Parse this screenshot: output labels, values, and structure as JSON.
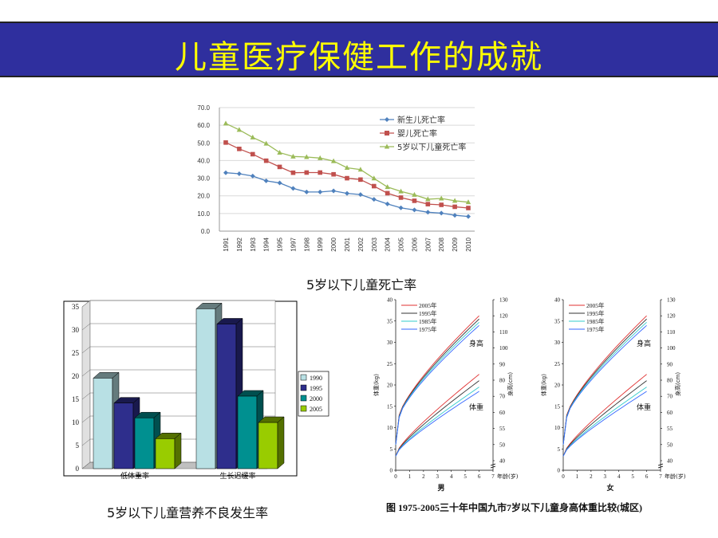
{
  "slide": {
    "title": "儿童医疗保健工作的成就"
  },
  "captions": {
    "chart1": "5岁以下儿童死亡率",
    "chart2": "5岁以下儿童营养不良发生率",
    "chart3": "图  1975-2005三十年中国九市7岁以下儿童身高体重比较(城区)"
  },
  "chart_data": [
    {
      "type": "line",
      "categories": [
        "1991",
        "1992",
        "1993",
        "1994",
        "1995",
        "1997",
        "1998",
        "1999",
        "2000",
        "2001",
        "2002",
        "2003",
        "2004",
        "2005",
        "2006",
        "2007",
        "2008",
        "2009",
        "2010"
      ],
      "ylim": [
        0,
        70
      ],
      "yticks": [
        "0.0",
        "10.0",
        "20.0",
        "30.0",
        "40.0",
        "50.0",
        "60.0",
        "70.0"
      ],
      "series": [
        {
          "name": "新生儿死亡率",
          "color": "#4f81bd",
          "marker": "diamond",
          "values": [
            33.1,
            32.5,
            31.2,
            28.5,
            27.3,
            24.2,
            22.2,
            22.2,
            22.8,
            21.4,
            20.7,
            18.0,
            15.4,
            13.2,
            12.0,
            10.7,
            10.2,
            9.0,
            8.3
          ]
        },
        {
          "name": "婴儿死亡率",
          "color": "#c0504d",
          "marker": "square",
          "values": [
            50.2,
            46.6,
            43.6,
            39.9,
            36.4,
            33.1,
            33.2,
            33.2,
            32.2,
            30.0,
            29.2,
            25.5,
            21.5,
            19.0,
            17.2,
            15.3,
            14.9,
            13.8,
            13.1
          ]
        },
        {
          "name": "5岁以下儿童死亡率",
          "color": "#9bbb59",
          "marker": "triangle",
          "values": [
            61.0,
            57.4,
            53.1,
            49.6,
            44.5,
            42.3,
            42.0,
            41.4,
            39.7,
            35.9,
            34.9,
            29.9,
            25.0,
            22.5,
            20.6,
            18.1,
            18.5,
            17.2,
            16.4
          ]
        }
      ]
    },
    {
      "type": "bar",
      "categories": [
        "低体重率",
        "生长迟缓率"
      ],
      "ylim": [
        0,
        35
      ],
      "yticks": [
        "0",
        "5",
        "10",
        "15",
        "20",
        "25",
        "30",
        "35"
      ],
      "series": [
        {
          "name": "1990",
          "color": "#b8e0e4",
          "values": [
            19.6,
            34.6
          ]
        },
        {
          "name": "1995",
          "color": "#2e2e8c",
          "values": [
            14.2,
            31.3
          ]
        },
        {
          "name": "2000",
          "color": "#009090",
          "values": [
            11.0,
            15.7
          ]
        },
        {
          "name": "2005",
          "color": "#99cc00",
          "values": [
            6.5,
            10.0
          ]
        }
      ]
    },
    {
      "type": "line",
      "panel": "男",
      "x_ticks": [
        "0",
        "1",
        "2",
        "3",
        "4",
        "5",
        "6",
        "7"
      ],
      "x_unit": "年龄(岁)",
      "left_axis": {
        "label": "体重(kg)",
        "ticks": [
          "0",
          "5",
          "10",
          "15",
          "20",
          "25",
          "30",
          "35",
          "40"
        ]
      },
      "right_axis": {
        "label": "身高(cm)",
        "ticks": [
          "40",
          "50",
          "55",
          "60",
          "70",
          "80",
          "90",
          "100",
          "110",
          "120",
          "130"
        ]
      },
      "curve_labels": {
        "height": "身高",
        "weight": "体重"
      },
      "series": [
        {
          "name": "2005年",
          "color": "#e03030"
        },
        {
          "name": "1995年",
          "color": "#333333"
        },
        {
          "name": "1985年",
          "color": "#33cccc"
        },
        {
          "name": "1975年",
          "color": "#3366ff"
        }
      ]
    },
    {
      "type": "line",
      "panel": "女",
      "x_ticks": [
        "0",
        "1",
        "2",
        "3",
        "4",
        "5",
        "6",
        "7"
      ],
      "x_unit": "年龄(岁)",
      "left_axis": {
        "label": "体重(kg)",
        "ticks": [
          "0",
          "5",
          "10",
          "15",
          "20",
          "25",
          "30",
          "35",
          "40"
        ]
      },
      "right_axis": {
        "label": "身高(cm)",
        "ticks": [
          "40",
          "50",
          "55",
          "60",
          "70",
          "80",
          "90",
          "100",
          "110",
          "120",
          "130"
        ]
      },
      "curve_labels": {
        "height": "身高",
        "weight": "体重"
      },
      "series": [
        {
          "name": "2005年",
          "color": "#e03030"
        },
        {
          "name": "1995年",
          "color": "#333333"
        },
        {
          "name": "1985年",
          "color": "#33cccc"
        },
        {
          "name": "1975年",
          "color": "#3366ff"
        }
      ]
    }
  ]
}
